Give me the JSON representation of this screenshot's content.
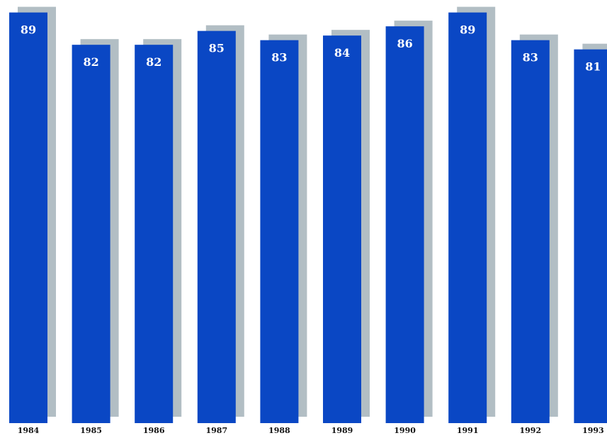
{
  "chart_data": {
    "type": "bar",
    "categories": [
      "1984",
      "1985",
      "1986",
      "1987",
      "1988",
      "1989",
      "1990",
      "1991",
      "1992",
      "1993"
    ],
    "values": [
      89,
      82,
      82,
      85,
      83,
      84,
      86,
      89,
      83,
      81
    ],
    "title": "",
    "xlabel": "",
    "ylabel": "",
    "data_labels": [
      "89",
      "82",
      "82",
      "85",
      "83",
      "84",
      "86",
      "89",
      "83",
      "81"
    ],
    "grid": false,
    "legend": "none",
    "bar_style": "3d-shadow",
    "colors": {
      "bar": "#0a47c4",
      "shadow": "#b2bec4",
      "label": "#ffffff",
      "tick": "#111111",
      "background": "#ffffff"
    }
  }
}
